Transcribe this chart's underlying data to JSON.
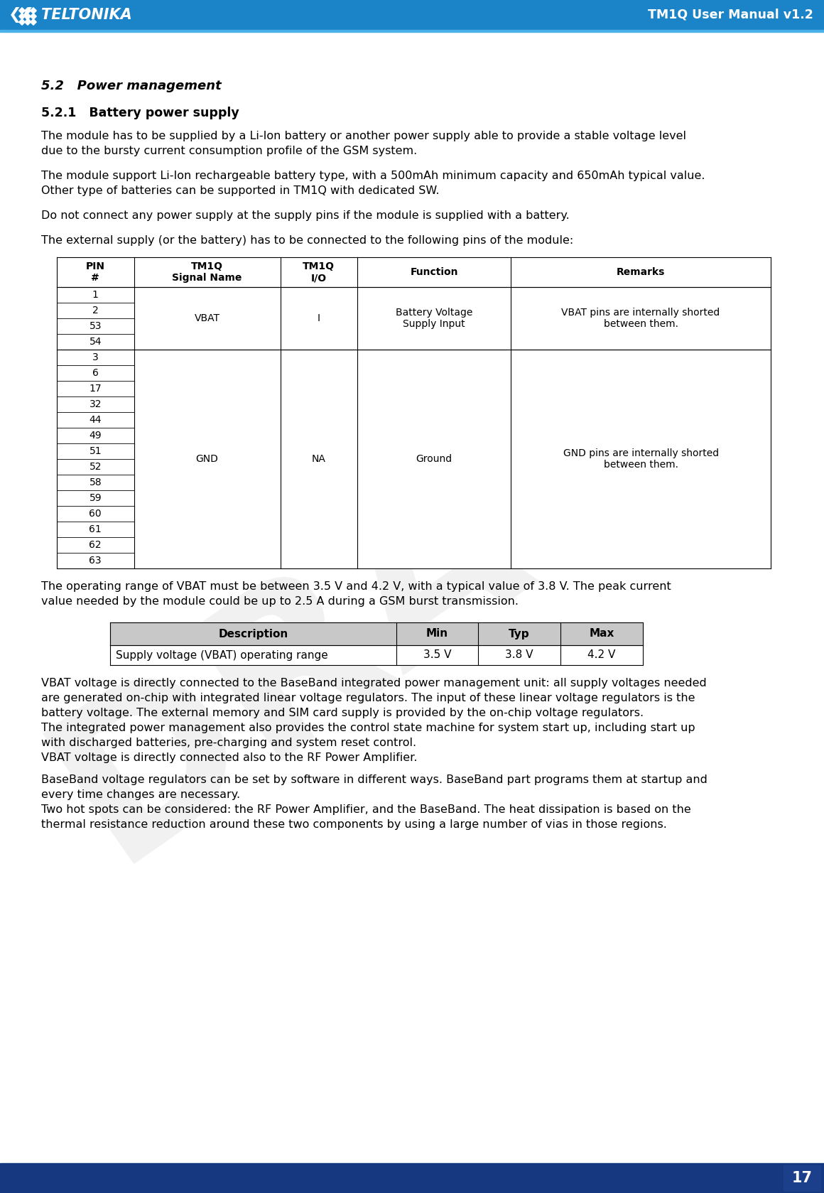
{
  "header_bg_top": "#1e8fd0",
  "header_bg_bottom": "#1565a8",
  "header_text_left": "TELTONIKA",
  "header_text_right": "TM1Q User Manual v1.2",
  "footer_page_number": "17",
  "body_bg": "#ffffff",
  "section_title": "5.2   Power management",
  "subsection_title": "5.2.1   Battery power supply",
  "para1_line1": "The module has to be supplied by a Li-Ion battery or another power supply able to provide a stable voltage level",
  "para1_line2": "due to the bursty current consumption profile of the GSM system.",
  "para2_line1": "The module support Li-Ion rechargeable battery type, with a 500mAh minimum capacity and 650mAh typical value.",
  "para2_line2": "Other type of batteries can be supported in TM1Q with dedicated SW.",
  "para3": "Do not connect any power supply at the supply pins if the module is supplied with a battery.",
  "para4": "The external supply (or the battery) has to be connected to the following pins of the module:",
  "t1_h": [
    "PIN\n#",
    "TM1Q\nSignal Name",
    "TM1Q\nI/O",
    "Function",
    "Remarks"
  ],
  "vbat_pins": [
    "1",
    "2",
    "53",
    "54"
  ],
  "vbat_signal": "VBAT",
  "vbat_io": "I",
  "vbat_func": "Battery Voltage\nSupply Input",
  "vbat_rem": "VBAT pins are internally shorted\nbetween them.",
  "gnd_pins": [
    "3",
    "6",
    "17",
    "32",
    "44",
    "49",
    "51",
    "52",
    "58",
    "59",
    "60",
    "61",
    "62",
    "63"
  ],
  "gnd_signal": "GND",
  "gnd_io": "NA",
  "gnd_func": "Ground",
  "gnd_rem": "GND pins are internally shorted\nbetween them.",
  "para5_line1": "The operating range of VBAT must be between 3.5 V and 4.2 V, with a typical value of 3.8 V. The peak current",
  "para5_line2": "value needed by the module could be up to 2.5 A during a GSM burst transmission.",
  "t2_h": [
    "Description",
    "Min",
    "Typ",
    "Max"
  ],
  "t2_row": [
    "Supply voltage (VBAT) operating range",
    "3.5 V",
    "3.8 V",
    "4.2 V"
  ],
  "para6_lines": [
    "VBAT voltage is directly connected to the BaseBand integrated power management unit: all supply voltages needed",
    "are generated on-chip with integrated linear voltage regulators. The input of these linear voltage regulators is the",
    "battery voltage. The external memory and SIM card supply is provided by the on-chip voltage regulators.",
    "The integrated power management also provides the control state machine for system start up, including start up",
    "with discharged batteries, pre-charging and system reset control.",
    "VBAT voltage is directly connected also to the RF Power Amplifier."
  ],
  "para7_lines": [
    "BaseBand voltage regulators can be set by software in different ways. BaseBand part programs them at startup and",
    "every time changes are necessary.",
    "Two hot spots can be considered: the RF Power Amplifier, and the BaseBand. The heat dissipation is based on the",
    "thermal resistance reduction around these two components by using a large number of vias in those regions."
  ],
  "text_color": "#000000",
  "table_border": "#000000",
  "section_color": "#000000"
}
